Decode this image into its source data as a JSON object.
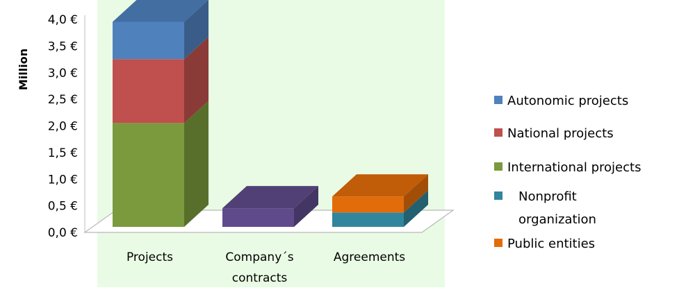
{
  "chart_data": {
    "type": "bar",
    "stacked": true,
    "three_d": true,
    "ylabel": "Million",
    "ylim": [
      0,
      4.0
    ],
    "yticks": [
      "0,0 €",
      "0,5 €",
      "1,0 €",
      "1,5 €",
      "2,0 €",
      "2,5 €",
      "3,0 €",
      "3,5 €",
      "4,0 €"
    ],
    "categories": [
      "Projects",
      "Company´s contracts",
      "Agreements"
    ],
    "category_lines": [
      [
        "Projects"
      ],
      [
        "Company´s",
        "contracts"
      ],
      [
        "Agreements"
      ]
    ],
    "series": [
      {
        "name": "International projects",
        "color": "#7a9a3d",
        "values": [
          1.95,
          0,
          0
        ]
      },
      {
        "name": "National projects",
        "color": "#c0504d",
        "values": [
          1.2,
          0,
          0
        ]
      },
      {
        "name": "Autonomic projects",
        "color": "#4f81bd",
        "values": [
          0.7,
          0,
          0
        ]
      },
      {
        "name": "Company´s contracts",
        "color": "#5f4b8b",
        "values": [
          0,
          0.35,
          0
        ]
      },
      {
        "name": "Nonprofit organization",
        "color": "#31859c",
        "values": [
          0,
          0,
          0.27
        ]
      },
      {
        "name": "Public entities",
        "color": "#e36c0a",
        "values": [
          0,
          0,
          0.3
        ]
      }
    ],
    "legend": {
      "position": "right",
      "items": [
        {
          "label_lines": [
            "Autonomic projects"
          ],
          "color": "#4f81bd"
        },
        {
          "label_lines": [
            "National projects"
          ],
          "color": "#c0504d"
        },
        {
          "label_lines": [
            "International projects"
          ],
          "color": "#7a9a3d"
        },
        {
          "label_lines": [
            "Nonprofit",
            "organization"
          ],
          "color": "#31859c"
        },
        {
          "label_lines": [
            "Public entities"
          ],
          "color": "#e36c0a"
        }
      ]
    },
    "background_color": "#e9fbe4",
    "grid": false
  }
}
